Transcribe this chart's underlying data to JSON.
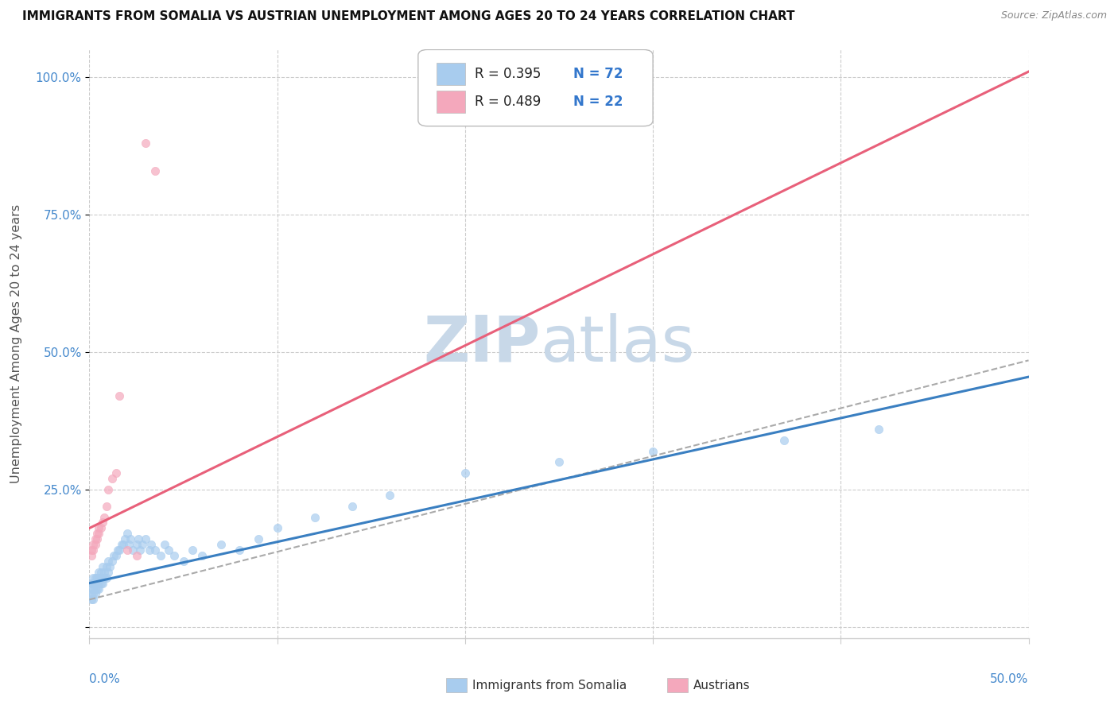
{
  "title": "IMMIGRANTS FROM SOMALIA VS AUSTRIAN UNEMPLOYMENT AMONG AGES 20 TO 24 YEARS CORRELATION CHART",
  "source": "Source: ZipAtlas.com",
  "ylabel": "Unemployment Among Ages 20 to 24 years",
  "xlim": [
    0,
    0.5
  ],
  "ylim": [
    -0.02,
    1.05
  ],
  "legend_r1": "R = 0.395",
  "legend_n1": "N = 72",
  "legend_r2": "R = 0.489",
  "legend_n2": "N = 22",
  "blue_color": "#A8CCEE",
  "pink_color": "#F4A8BC",
  "blue_line_color": "#3A7FC1",
  "pink_line_color": "#E8607A",
  "dashed_line_color": "#AAAAAA",
  "watermark_color": "#C8D8E8",
  "grid_color": "#CCCCCC",
  "tick_color": "#4488CC",
  "title_color": "#111111",
  "source_color": "#888888",
  "ylabel_color": "#555555",
  "legend_text_color": "#222222",
  "legend_n_color": "#3377CC",
  "somalia_x": [
    0.001,
    0.001,
    0.001,
    0.001,
    0.002,
    0.002,
    0.002,
    0.002,
    0.002,
    0.003,
    0.003,
    0.003,
    0.003,
    0.004,
    0.004,
    0.004,
    0.005,
    0.005,
    0.005,
    0.005,
    0.006,
    0.006,
    0.006,
    0.007,
    0.007,
    0.007,
    0.008,
    0.008,
    0.009,
    0.009,
    0.01,
    0.01,
    0.011,
    0.012,
    0.013,
    0.014,
    0.015,
    0.016,
    0.017,
    0.018,
    0.019,
    0.02,
    0.021,
    0.022,
    0.023,
    0.025,
    0.026,
    0.027,
    0.028,
    0.03,
    0.032,
    0.033,
    0.035,
    0.038,
    0.04,
    0.042,
    0.045,
    0.05,
    0.055,
    0.06,
    0.07,
    0.08,
    0.09,
    0.1,
    0.12,
    0.14,
    0.16,
    0.2,
    0.25,
    0.3,
    0.37,
    0.42
  ],
  "somalia_y": [
    0.05,
    0.06,
    0.07,
    0.08,
    0.05,
    0.06,
    0.07,
    0.08,
    0.09,
    0.06,
    0.07,
    0.08,
    0.09,
    0.07,
    0.08,
    0.09,
    0.07,
    0.08,
    0.09,
    0.1,
    0.08,
    0.09,
    0.1,
    0.08,
    0.09,
    0.11,
    0.09,
    0.1,
    0.09,
    0.11,
    0.1,
    0.12,
    0.11,
    0.12,
    0.13,
    0.13,
    0.14,
    0.14,
    0.15,
    0.15,
    0.16,
    0.17,
    0.15,
    0.16,
    0.14,
    0.15,
    0.16,
    0.14,
    0.15,
    0.16,
    0.14,
    0.15,
    0.14,
    0.13,
    0.15,
    0.14,
    0.13,
    0.12,
    0.14,
    0.13,
    0.15,
    0.14,
    0.16,
    0.18,
    0.2,
    0.22,
    0.24,
    0.28,
    0.3,
    0.32,
    0.34,
    0.36
  ],
  "austrian_x": [
    0.001,
    0.001,
    0.002,
    0.002,
    0.003,
    0.003,
    0.004,
    0.004,
    0.005,
    0.005,
    0.006,
    0.007,
    0.008,
    0.009,
    0.01,
    0.012,
    0.014,
    0.016,
    0.02,
    0.025,
    0.03,
    0.035
  ],
  "austrian_y": [
    0.13,
    0.14,
    0.14,
    0.15,
    0.15,
    0.16,
    0.16,
    0.17,
    0.17,
    0.18,
    0.18,
    0.19,
    0.2,
    0.22,
    0.25,
    0.27,
    0.28,
    0.42,
    0.14,
    0.13,
    0.88,
    0.83
  ],
  "somalia_reg": [
    0.08,
    0.75
  ],
  "austrian_reg": [
    0.18,
    1.66
  ],
  "dashed_reg": [
    0.05,
    0.87
  ]
}
